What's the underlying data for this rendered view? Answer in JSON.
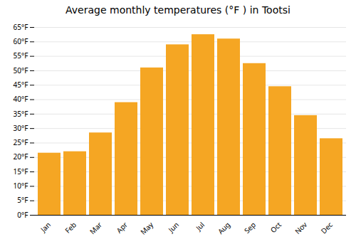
{
  "chart_data": {
    "type": "bar",
    "title": "Average monthly temperatures (°F ) in Tootsi",
    "categories": [
      "Jan",
      "Feb",
      "Mar",
      "Apr",
      "May",
      "Jun",
      "Jul",
      "Aug",
      "Sep",
      "Oct",
      "Nov",
      "Dec"
    ],
    "values": [
      21.5,
      22.0,
      28.5,
      39.0,
      51.0,
      59.0,
      62.5,
      61.0,
      52.5,
      44.5,
      34.5,
      26.5
    ],
    "color": "#F5A623",
    "ylim": [
      0,
      65
    ],
    "yticks": [
      {
        "value": 0,
        "label": "0°F"
      },
      {
        "value": 5,
        "label": "5°F"
      },
      {
        "value": 10,
        "label": "10°F"
      },
      {
        "value": 15,
        "label": "15°F"
      },
      {
        "value": 20,
        "label": "20°F"
      },
      {
        "value": 25,
        "label": "25°F"
      },
      {
        "value": 30,
        "label": "30°F"
      },
      {
        "value": 35,
        "label": "35°F"
      },
      {
        "value": 40,
        "label": "40°F"
      },
      {
        "value": 45,
        "label": "45°F"
      },
      {
        "value": 50,
        "label": "50°F"
      },
      {
        "value": 55,
        "label": "55°F"
      },
      {
        "value": 60,
        "label": "60°F"
      },
      {
        "value": 65,
        "label": "65°F"
      }
    ],
    "grid": true
  }
}
